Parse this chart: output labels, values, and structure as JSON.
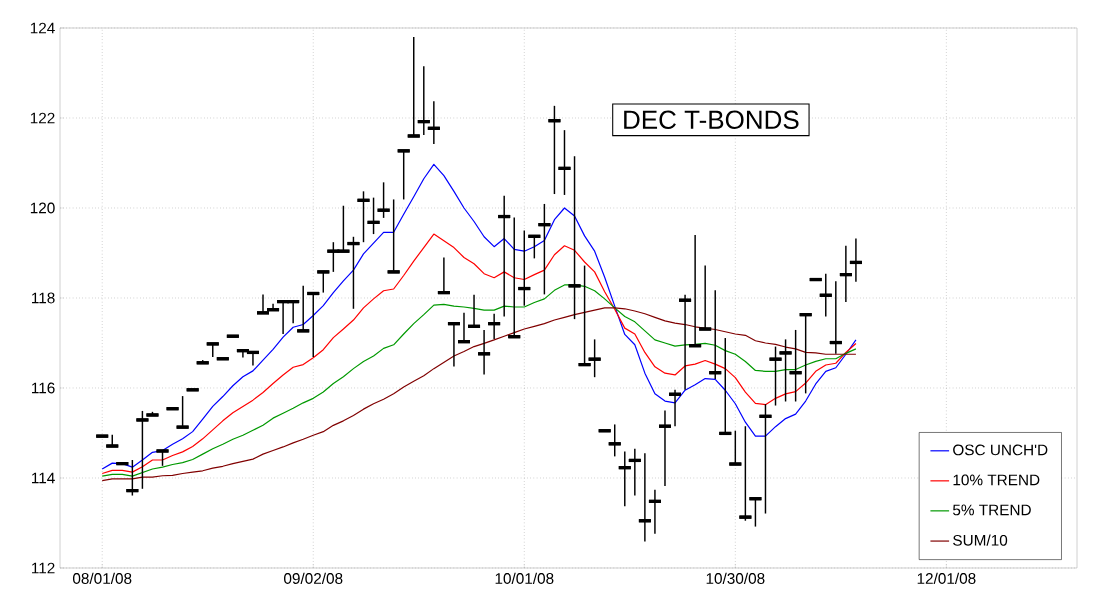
{
  "chart_data": {
    "type": "candlestick",
    "title": "DEC T-BONDS",
    "categories": [
      "08/01/08",
      null,
      null,
      null,
      null,
      null,
      null,
      null,
      null,
      null,
      null,
      null,
      null,
      null,
      null,
      null,
      null,
      null,
      null,
      null,
      null,
      "09/02/08",
      null,
      null,
      null,
      null,
      null,
      null,
      null,
      null,
      null,
      null,
      null,
      null,
      null,
      null,
      null,
      null,
      null,
      null,
      null,
      null,
      "10/01/08",
      null,
      null,
      null,
      null,
      null,
      null,
      null,
      null,
      null,
      null,
      null,
      null,
      null,
      null,
      null,
      null,
      null,
      null,
      null,
      null,
      "10/30/08",
      null,
      null,
      null,
      null,
      null,
      null,
      null,
      null,
      null,
      null,
      null,
      null,
      null,
      null,
      null,
      null,
      null,
      null,
      null,
      null,
      "12/01/08"
    ],
    "ohlc": [
      [
        114.93,
        114.93,
        114.93,
        114.93
      ],
      [
        114.71,
        114.96,
        114.71,
        114.71
      ],
      [
        114.32,
        114.32,
        114.32,
        114.32
      ],
      [
        113.72,
        114.4,
        113.61,
        113.72
      ],
      [
        115.29,
        115.49,
        113.76,
        115.29
      ],
      [
        115.4,
        115.47,
        115.4,
        115.4
      ],
      [
        114.6,
        114.6,
        114.27,
        114.6
      ],
      [
        115.54,
        115.54,
        115.54,
        115.54
      ],
      [
        115.13,
        115.82,
        115.13,
        115.13
      ],
      [
        115.96,
        115.96,
        115.96,
        115.96
      ],
      [
        116.56,
        116.62,
        116.56,
        116.56
      ],
      [
        116.98,
        116.98,
        116.69,
        116.98
      ],
      [
        116.65,
        116.65,
        116.65,
        116.65
      ],
      [
        117.15,
        117.15,
        117.15,
        117.15
      ],
      [
        116.83,
        116.83,
        116.68,
        116.83
      ],
      [
        116.79,
        116.79,
        116.5,
        116.79
      ],
      [
        117.67,
        118.08,
        117.67,
        117.67
      ],
      [
        117.74,
        117.87,
        117.74,
        117.74
      ],
      [
        117.92,
        117.92,
        117.2,
        117.92
      ],
      [
        117.92,
        117.92,
        117.44,
        117.92
      ],
      [
        117.27,
        118.27,
        117.27,
        117.27
      ],
      [
        118.1,
        118.1,
        116.69,
        118.1
      ],
      [
        118.58,
        118.58,
        118.12,
        118.58
      ],
      [
        119.04,
        119.24,
        118.58,
        119.04
      ],
      [
        119.04,
        120.05,
        119.04,
        119.04
      ],
      [
        119.21,
        119.36,
        117.76,
        119.21
      ],
      [
        120.17,
        120.37,
        119.24,
        120.17
      ],
      [
        119.68,
        120.23,
        119.42,
        119.68
      ],
      [
        119.95,
        120.57,
        119.78,
        119.95
      ],
      [
        118.58,
        120.19,
        118.58,
        118.58
      ],
      [
        121.27,
        121.27,
        120.19,
        121.27
      ],
      [
        121.6,
        123.8,
        121.6,
        121.6
      ],
      [
        121.92,
        123.15,
        121.62,
        121.92
      ],
      [
        121.77,
        122.37,
        121.42,
        121.77
      ],
      [
        118.12,
        118.9,
        118.12,
        118.12
      ],
      [
        117.43,
        117.43,
        116.48,
        117.43
      ],
      [
        117.03,
        117.67,
        117.03,
        117.03
      ],
      [
        117.37,
        118.07,
        117.37,
        117.37
      ],
      [
        116.76,
        117.29,
        116.3,
        116.76
      ],
      [
        117.43,
        117.65,
        117.09,
        117.43
      ],
      [
        119.81,
        120.27,
        117.59,
        119.81
      ],
      [
        117.14,
        119.79,
        117.14,
        117.14
      ],
      [
        118.21,
        119.5,
        117.83,
        118.21
      ],
      [
        119.37,
        119.37,
        118.88,
        119.37
      ],
      [
        119.63,
        120.09,
        118.08,
        119.63
      ],
      [
        121.94,
        122.27,
        120.31,
        121.94
      ],
      [
        120.88,
        121.73,
        120.29,
        120.88
      ],
      [
        118.27,
        121.15,
        117.53,
        118.27
      ],
      [
        116.52,
        118.72,
        116.52,
        116.52
      ],
      [
        116.64,
        117.08,
        116.24,
        116.64
      ],
      [
        115.05,
        115.05,
        115.05,
        115.05
      ],
      [
        114.76,
        115.19,
        114.48,
        114.76
      ],
      [
        114.23,
        114.59,
        113.37,
        114.23
      ],
      [
        114.39,
        114.65,
        113.61,
        114.39
      ],
      [
        113.05,
        114.55,
        112.59,
        113.05
      ],
      [
        113.48,
        113.74,
        112.76,
        113.48
      ],
      [
        115.15,
        115.5,
        113.82,
        115.15
      ],
      [
        115.86,
        115.96,
        115.15,
        115.86
      ],
      [
        117.95,
        118.07,
        115.96,
        117.95
      ],
      [
        116.94,
        119.4,
        116.94,
        116.94
      ],
      [
        117.31,
        118.72,
        117.31,
        117.31
      ],
      [
        116.34,
        118.17,
        116.2,
        116.34
      ],
      [
        114.99,
        117.11,
        114.99,
        114.99
      ],
      [
        114.31,
        115.05,
        114.31,
        114.31
      ],
      [
        113.13,
        115.15,
        113.05,
        113.13
      ],
      [
        113.54,
        113.54,
        112.92,
        113.54
      ],
      [
        115.37,
        115.64,
        113.21,
        115.37
      ],
      [
        116.64,
        116.92,
        115.61,
        116.64
      ],
      [
        116.78,
        117.08,
        115.7,
        116.78
      ],
      [
        116.34,
        117.29,
        115.7,
        116.34
      ],
      [
        117.63,
        117.63,
        115.88,
        117.63
      ],
      [
        118.41,
        118.41,
        118.41,
        118.41
      ],
      [
        118.06,
        118.54,
        117.59,
        118.06
      ],
      [
        117.01,
        118.37,
        116.76,
        117.01
      ],
      [
        118.52,
        119.16,
        117.91,
        118.52
      ],
      [
        118.79,
        119.32,
        118.36,
        118.79
      ],
      null,
      null,
      null,
      null,
      null,
      null,
      null,
      null,
      null
    ],
    "series": [
      {
        "name": "OSC UNCH'D",
        "type": "line",
        "color": "#0000ff",
        "values": [
          114.2,
          114.33,
          114.32,
          114.24,
          114.4,
          114.57,
          114.61,
          114.75,
          114.87,
          115.03,
          115.31,
          115.59,
          115.81,
          116.05,
          116.25,
          116.38,
          116.62,
          116.86,
          117.13,
          117.35,
          117.41,
          117.61,
          117.83,
          118.12,
          118.38,
          118.62,
          118.98,
          119.22,
          119.46,
          119.46,
          119.86,
          120.25,
          120.65,
          120.97,
          120.72,
          120.37,
          120.0,
          119.7,
          119.36,
          119.14,
          119.32,
          119.08,
          119.04,
          119.14,
          119.28,
          119.74,
          120.0,
          119.82,
          119.38,
          119.04,
          118.46,
          117.82,
          117.19,
          116.96,
          116.33,
          115.87,
          115.71,
          115.67,
          115.95,
          116.07,
          116.21,
          116.19,
          115.95,
          115.65,
          115.24,
          114.93,
          114.93,
          115.14,
          115.32,
          115.42,
          115.71,
          116.09,
          116.37,
          116.45,
          116.75,
          117.07,
          null,
          null,
          null,
          null,
          null,
          null,
          null,
          null,
          null
        ]
      },
      {
        "name": "10% TREND",
        "type": "line",
        "color": "#ff0000",
        "values": [
          114.1,
          114.17,
          114.17,
          114.13,
          114.25,
          114.4,
          114.4,
          114.5,
          114.58,
          114.7,
          114.87,
          115.07,
          115.27,
          115.45,
          115.59,
          115.73,
          115.9,
          116.1,
          116.29,
          116.46,
          116.52,
          116.67,
          116.85,
          117.12,
          117.31,
          117.51,
          117.78,
          117.98,
          118.16,
          118.2,
          118.5,
          118.82,
          119.12,
          119.42,
          119.27,
          119.12,
          118.9,
          118.76,
          118.54,
          118.45,
          118.58,
          118.45,
          118.41,
          118.52,
          118.62,
          118.96,
          119.16,
          119.06,
          118.8,
          118.58,
          118.14,
          117.75,
          117.33,
          117.2,
          116.79,
          116.47,
          116.33,
          116.29,
          116.49,
          116.53,
          116.61,
          116.53,
          116.43,
          116.23,
          115.91,
          115.66,
          115.63,
          115.77,
          115.87,
          115.92,
          116.11,
          116.37,
          116.51,
          116.55,
          116.79,
          116.99,
          null,
          null,
          null,
          null,
          null,
          null,
          null,
          null,
          null
        ]
      },
      {
        "name": "5% TREND",
        "type": "line",
        "color": "#009900",
        "values": [
          114.04,
          114.08,
          114.08,
          114.04,
          114.12,
          114.2,
          114.24,
          114.3,
          114.34,
          114.41,
          114.53,
          114.65,
          114.75,
          114.86,
          114.95,
          115.06,
          115.17,
          115.33,
          115.44,
          115.55,
          115.67,
          115.77,
          115.91,
          116.1,
          116.25,
          116.43,
          116.59,
          116.71,
          116.88,
          116.96,
          117.2,
          117.43,
          117.63,
          117.84,
          117.86,
          117.82,
          117.8,
          117.77,
          117.73,
          117.73,
          117.82,
          117.8,
          117.8,
          117.9,
          117.98,
          118.17,
          118.29,
          118.29,
          118.26,
          118.16,
          117.98,
          117.78,
          117.59,
          117.47,
          117.27,
          117.07,
          117.0,
          116.93,
          116.96,
          116.97,
          116.99,
          116.95,
          116.83,
          116.75,
          116.59,
          116.39,
          116.37,
          116.37,
          116.41,
          116.41,
          116.51,
          116.59,
          116.65,
          116.65,
          116.77,
          116.87,
          null,
          null,
          null,
          null,
          null,
          null,
          null,
          null,
          null
        ]
      },
      {
        "name": "SUM/10",
        "type": "line",
        "color": "#800000",
        "values": [
          113.94,
          113.98,
          113.98,
          113.98,
          114.02,
          114.02,
          114.05,
          114.06,
          114.1,
          114.13,
          114.16,
          114.22,
          114.26,
          114.32,
          114.37,
          114.42,
          114.53,
          114.61,
          114.69,
          114.78,
          114.86,
          114.95,
          115.03,
          115.17,
          115.27,
          115.39,
          115.53,
          115.65,
          115.75,
          115.87,
          116.02,
          116.15,
          116.27,
          116.43,
          116.57,
          116.71,
          116.81,
          116.92,
          116.99,
          117.07,
          117.15,
          117.23,
          117.31,
          117.37,
          117.43,
          117.51,
          117.57,
          117.63,
          117.68,
          117.73,
          117.78,
          117.78,
          117.76,
          117.71,
          117.65,
          117.57,
          117.49,
          117.44,
          117.41,
          117.36,
          117.33,
          117.3,
          117.25,
          117.2,
          117.17,
          117.05,
          117.0,
          116.97,
          116.91,
          116.87,
          116.79,
          116.78,
          116.75,
          116.75,
          116.75,
          116.75,
          null,
          null,
          null,
          null,
          null,
          null,
          null,
          null,
          null
        ]
      }
    ],
    "ylim": [
      112,
      124
    ],
    "yticks": [
      112,
      114,
      116,
      118,
      120,
      122,
      124
    ],
    "grid": true,
    "legend": "bottom right"
  }
}
